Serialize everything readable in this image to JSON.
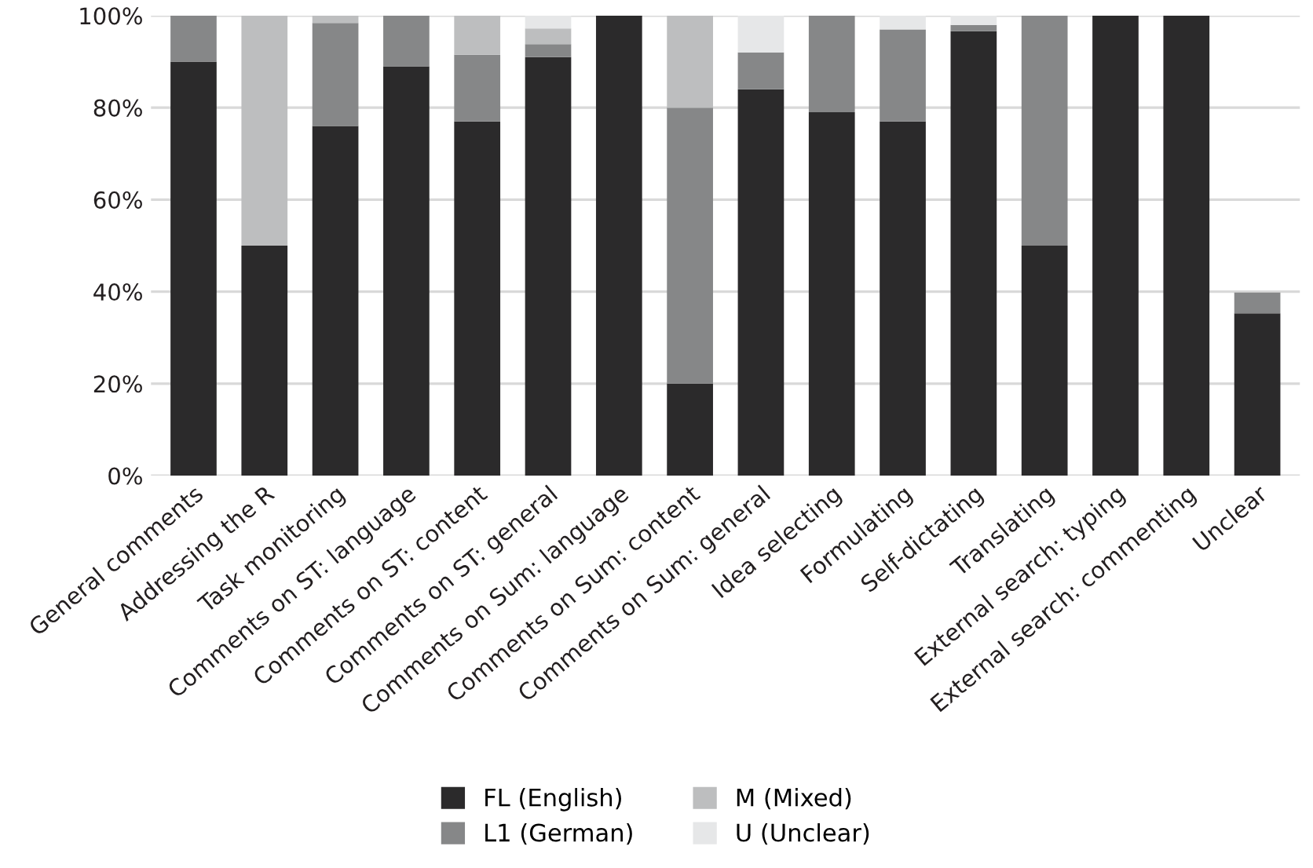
{
  "chart_data": {
    "type": "bar",
    "stacked": true,
    "categories": [
      "General comments",
      "Addressing the R",
      "Task monitoring",
      "Comments on ST: language",
      "Comments on ST: content",
      "Comments on ST: general",
      "Comments on Sum: language",
      "Comments on Sum: content",
      "Comments on Sum: general",
      "Idea selecting",
      "Formulating",
      "Self-dictating",
      "Translating",
      "External search: typing",
      "External search: commenting",
      "Unclear"
    ],
    "series": [
      {
        "name": "FL (English)",
        "color": "#2b2a2b",
        "values": [
          90,
          50,
          76,
          89,
          77,
          91,
          100,
          20,
          84,
          79,
          77,
          96.6,
          50,
          100,
          100,
          35.3
        ]
      },
      {
        "name": "L1 (German)",
        "color": "#868788",
        "values": [
          10,
          0,
          22.4,
          11,
          14.5,
          2.8,
          0,
          60,
          8,
          21,
          20,
          1.4,
          50,
          0,
          0,
          4.5
        ]
      },
      {
        "name": "M (Mixed)",
        "color": "#bdbebf",
        "values": [
          0,
          50,
          1.6,
          0,
          8.5,
          3.4,
          0,
          20,
          0,
          0,
          0,
          0,
          0,
          0,
          0,
          0
        ]
      },
      {
        "name": "U (Unclear)",
        "color": "#e6e7e8",
        "values": [
          0,
          0,
          0,
          0,
          0,
          2.8,
          0,
          0,
          8,
          0,
          3,
          2,
          0,
          0,
          0,
          0
        ]
      }
    ],
    "ylim": [
      0,
      100
    ],
    "yticks": [
      {
        "value": 0,
        "label": "0%"
      },
      {
        "value": 20,
        "label": "20%"
      },
      {
        "value": 40,
        "label": "40%"
      },
      {
        "value": 60,
        "label": "60%"
      },
      {
        "value": 80,
        "label": "80%"
      },
      {
        "value": 100,
        "label": "100%"
      }
    ],
    "grid": "y",
    "legend": "bottom"
  }
}
